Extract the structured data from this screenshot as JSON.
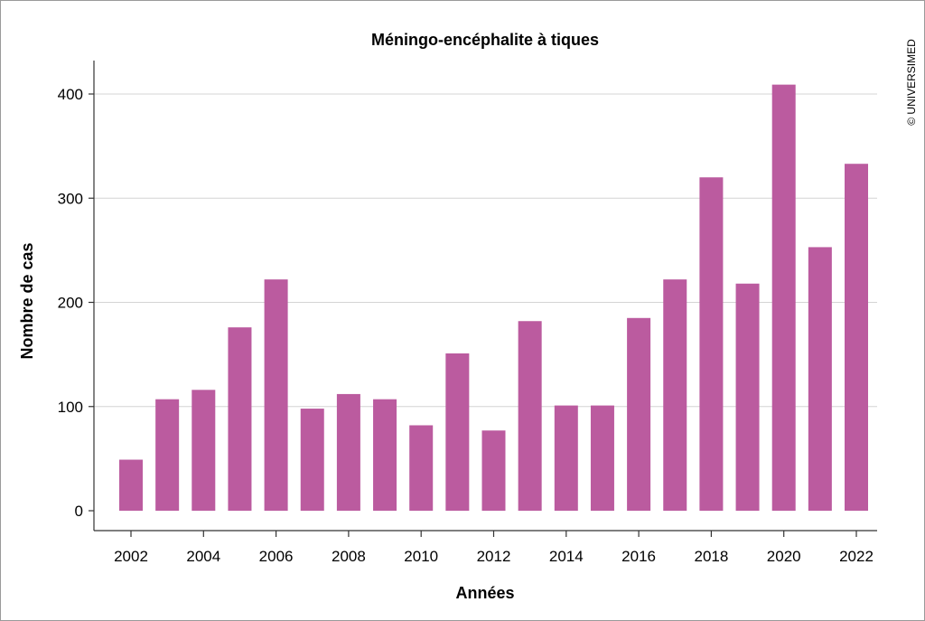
{
  "chart_data": {
    "type": "bar",
    "title": "Méningo-encéphalite à tiques",
    "xlabel": "Années",
    "ylabel": "Nombre de cas",
    "categories": [
      2002,
      2003,
      2004,
      2005,
      2006,
      2007,
      2008,
      2009,
      2010,
      2011,
      2012,
      2013,
      2014,
      2015,
      2016,
      2017,
      2018,
      2019,
      2020,
      2021,
      2022
    ],
    "values": [
      49,
      107,
      116,
      176,
      222,
      98,
      112,
      107,
      82,
      151,
      77,
      182,
      101,
      101,
      185,
      222,
      320,
      218,
      409,
      253,
      333
    ],
    "x_tick_labels": [
      "2002",
      "2004",
      "2006",
      "2008",
      "2010",
      "2012",
      "2014",
      "2016",
      "2018",
      "2020",
      "2022"
    ],
    "y_ticks": [
      0,
      100,
      200,
      300,
      400
    ],
    "ylim": [
      0,
      430
    ],
    "grid": "horizontal",
    "bar_color": "#bb5b9f",
    "legend": false
  },
  "copyright": "© UNIVERSIMED"
}
